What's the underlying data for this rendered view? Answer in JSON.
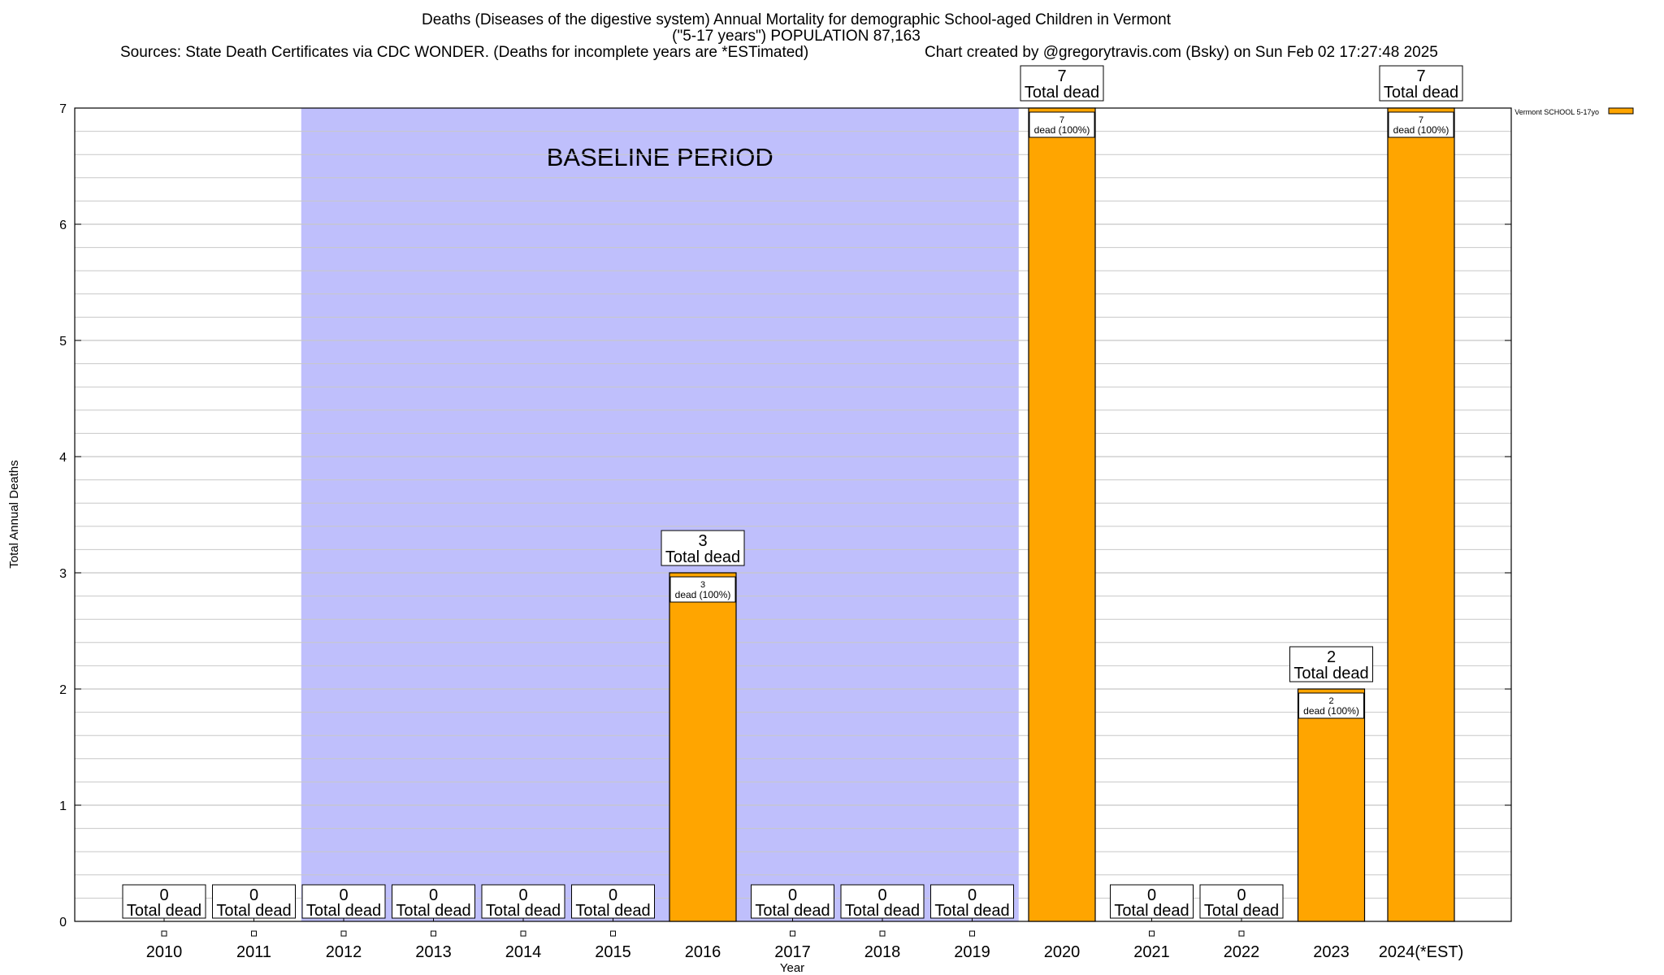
{
  "header": {
    "title_line1": "Deaths (Diseases of the digestive system) Annual Mortality for demographic School-aged Children in Vermont",
    "title_line2": "(\"5-17 years\") POPULATION 87,163",
    "sources": "Sources: State Death Certificates via CDC WONDER. (Deaths for incomplete years are *ESTimated)",
    "credit": "Chart created by @gregorytravis.com (Bsky) on Sun Feb 02 17:27:48 2025"
  },
  "colors": {
    "bar": "#FFA500",
    "baseline_band": "#BFBFFC",
    "grid": "#C8C8C8"
  },
  "chart_data": {
    "type": "bar",
    "categories": [
      "2010",
      "2011",
      "2012",
      "2013",
      "2014",
      "2015",
      "2016",
      "2017",
      "2018",
      "2019",
      "2020",
      "2021",
      "2022",
      "2023",
      "2024(*EST)"
    ],
    "series": [
      {
        "name": "Vermont SCHOOL 5-17yo",
        "values": [
          0,
          0,
          0,
          0,
          0,
          0,
          3,
          0,
          0,
          0,
          7,
          0,
          0,
          2,
          7
        ]
      }
    ],
    "xlabel": "Year",
    "ylabel": "Total Annual Deaths",
    "ylim": [
      0,
      7
    ],
    "yticks": [
      0,
      1,
      2,
      3,
      4,
      5,
      6,
      7
    ],
    "grid": true,
    "legend": "top-right",
    "total_label_text": "Total dead",
    "segment_label_text": "dead (100%)",
    "baseline": {
      "label": "BASELINE PERIOD",
      "from": "2012",
      "to": "2019"
    }
  }
}
